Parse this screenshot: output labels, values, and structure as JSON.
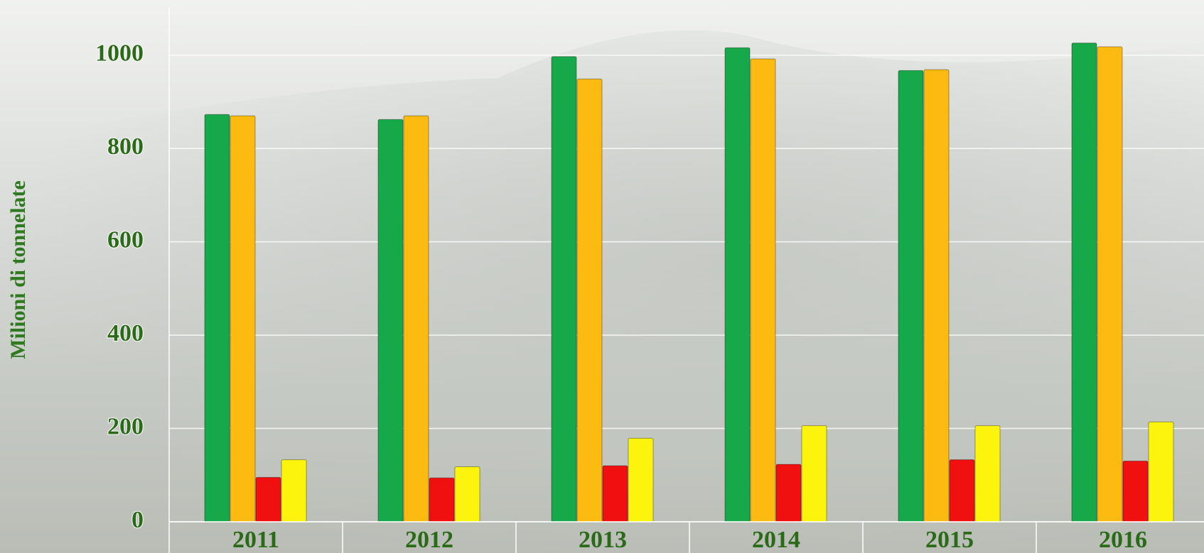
{
  "chart_data": {
    "type": "bar",
    "y_label": "Milioni di tonnelate",
    "categories": [
      "2011",
      "2012",
      "2013",
      "2014",
      "2015",
      "2016"
    ],
    "series": [
      {
        "color": "#17a84a",
        "values": [
          873,
          862,
          997,
          1016,
          967,
          1026
        ]
      },
      {
        "color": "#fdbb12",
        "values": [
          870,
          870,
          949,
          992,
          969,
          1018
        ]
      },
      {
        "color": "#f01010",
        "values": [
          95,
          94,
          120,
          123,
          133,
          130
        ]
      },
      {
        "color": "#fdf40e",
        "values": [
          133,
          118,
          179,
          206,
          206,
          214
        ]
      }
    ],
    "ylim": [
      0,
      1100
    ],
    "yticks": [
      0,
      200,
      400,
      600,
      800,
      1000
    ],
    "grid": true
  }
}
